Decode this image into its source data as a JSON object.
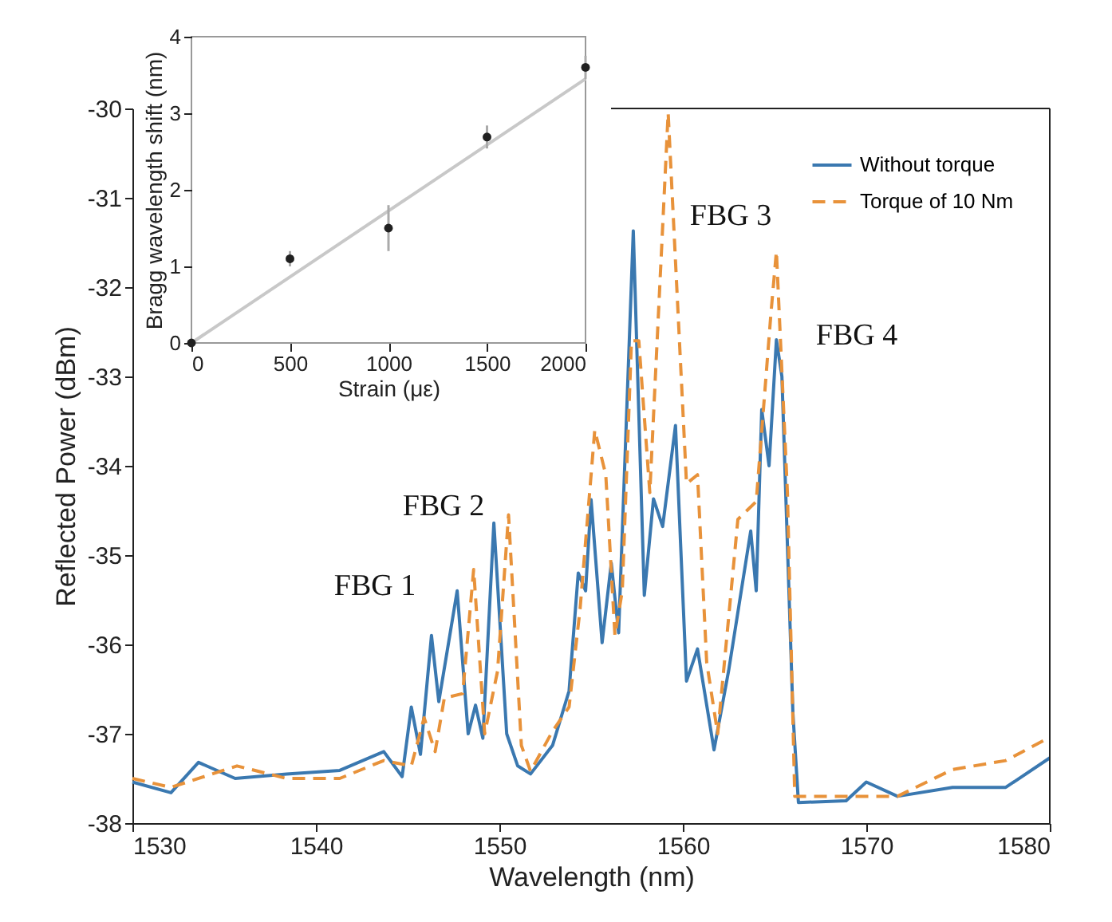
{
  "chart_data": [
    {
      "type": "line",
      "xlabel": "Wavelength (nm)",
      "ylabel": "Reflected Power (dBm)",
      "xlim": [
        1530,
        1580
      ],
      "ylim": [
        -38,
        -30
      ],
      "xticks": [
        1530,
        1540,
        1550,
        1560,
        1570,
        1580
      ],
      "yticks": [
        -38,
        -37,
        -36,
        -35,
        -34,
        -33,
        -32,
        -31,
        -30
      ],
      "grid": false,
      "legend": "top right",
      "series": [
        {
          "name": "Without torque",
          "color": "#3a78b0",
          "line_style": "solid",
          "x": [
            1530.0,
            1532.1,
            1533.6,
            1535.6,
            1538.4,
            1541.3,
            1543.7,
            1544.7,
            1545.2,
            1545.7,
            1546.3,
            1546.7,
            1547.7,
            1548.3,
            1548.7,
            1549.1,
            1549.7,
            1550.4,
            1551.0,
            1551.7,
            1552.9,
            1553.8,
            1554.3,
            1554.7,
            1555.0,
            1555.6,
            1556.1,
            1556.5,
            1557.3,
            1557.9,
            1558.4,
            1558.9,
            1559.6,
            1560.2,
            1560.8,
            1561.7,
            1562.5,
            1563.7,
            1564.0,
            1564.3,
            1564.7,
            1565.1,
            1565.4,
            1566.0,
            1566.3,
            1568.9,
            1570.0,
            1571.7,
            1574.7,
            1577.6,
            1580.0
          ],
          "values": [
            -37.54,
            -37.66,
            -37.32,
            -37.5,
            -37.45,
            -37.41,
            -37.2,
            -37.48,
            -36.7,
            -37.23,
            -35.9,
            -36.64,
            -35.4,
            -37.0,
            -36.68,
            -37.05,
            -34.64,
            -37.0,
            -37.36,
            -37.45,
            -37.13,
            -36.52,
            -35.2,
            -35.4,
            -34.38,
            -35.98,
            -35.09,
            -35.87,
            -31.37,
            -35.45,
            -34.37,
            -34.68,
            -33.55,
            -36.41,
            -36.05,
            -37.18,
            -36.29,
            -34.73,
            -35.4,
            -33.37,
            -34.0,
            -32.59,
            -33.0,
            -36.77,
            -37.77,
            -37.75,
            -37.54,
            -37.7,
            -37.6,
            -37.6,
            -37.27
          ]
        },
        {
          "name": "Torque of 10 Nm",
          "color": "#e8923a",
          "line_style": "dashed",
          "x": [
            1530.0,
            1532.1,
            1535.7,
            1538.4,
            1541.3,
            1543.7,
            1545.2,
            1545.9,
            1546.5,
            1547.0,
            1548.0,
            1548.6,
            1549.2,
            1549.9,
            1550.5,
            1551.2,
            1551.7,
            1552.9,
            1553.8,
            1554.4,
            1555.2,
            1555.8,
            1556.3,
            1556.7,
            1557.2,
            1557.6,
            1558.2,
            1559.2,
            1560.2,
            1560.8,
            1561.3,
            1561.9,
            1563.0,
            1564.0,
            1564.8,
            1565.1,
            1565.7,
            1566.1,
            1568.9,
            1571.7,
            1574.7,
            1577.6,
            1580.0
          ],
          "values": [
            -37.5,
            -37.6,
            -37.36,
            -37.5,
            -37.5,
            -37.3,
            -37.36,
            -36.82,
            -37.2,
            -36.6,
            -36.55,
            -35.16,
            -37.0,
            -36.3,
            -34.55,
            -37.13,
            -37.42,
            -36.97,
            -36.7,
            -35.6,
            -33.6,
            -34.1,
            -35.9,
            -35.4,
            -32.6,
            -32.6,
            -34.3,
            -30.05,
            -34.2,
            -34.1,
            -36.2,
            -37.0,
            -34.6,
            -34.4,
            -32.3,
            -31.6,
            -34.3,
            -37.7,
            -37.7,
            -37.7,
            -37.4,
            -37.3,
            -37.04
          ]
        }
      ],
      "annotations": [
        "FBG 1",
        "FBG 2",
        "FBG 3",
        "FBG 4"
      ]
    },
    {
      "type": "scatter",
      "xlabel": "Strain (με)",
      "ylabel": "Bragg wavelength shift (nm)",
      "xlim": [
        0,
        2000
      ],
      "ylim": [
        0,
        4
      ],
      "xticks": [
        0,
        500,
        1000,
        1500,
        2000
      ],
      "yticks": [
        0,
        1,
        2,
        3,
        4
      ],
      "grid": false,
      "series": [
        {
          "type": "line",
          "color": "#c8c8c8",
          "line_style": "solid",
          "x": [
            0,
            2000
          ],
          "values": [
            0,
            3.45
          ]
        },
        {
          "type": "scatter",
          "color": "#202020",
          "marker": "circle",
          "x": [
            0,
            500,
            1000,
            1500,
            2000
          ],
          "values": [
            0,
            1.1,
            1.5,
            2.69,
            3.6
          ],
          "errors": [
            null,
            0.1,
            0.3,
            0.15,
            0.15
          ]
        }
      ]
    }
  ]
}
